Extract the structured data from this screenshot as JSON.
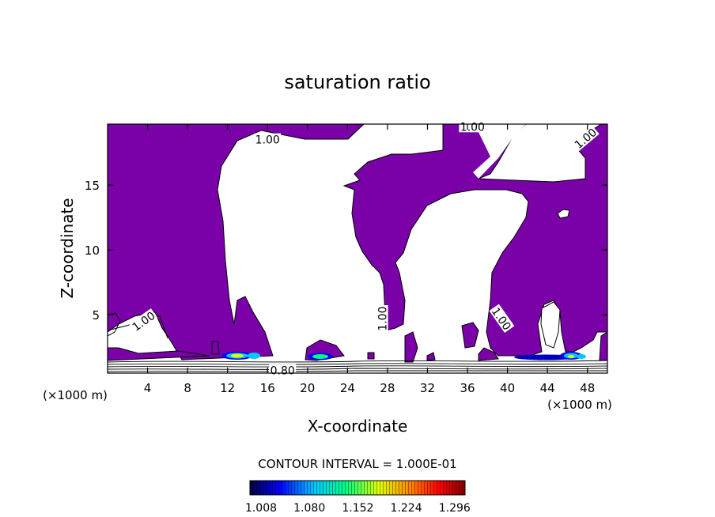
{
  "chart_data": {
    "type": "contour",
    "title": "saturation ratio",
    "xlabel": "X-coordinate",
    "ylabel": "Z-coordinate",
    "x_unit": "(×1000 m)",
    "x_unit_right": "(×1000 m)",
    "xlim": [
      0,
      50
    ],
    "ylim": [
      0.5,
      19.7
    ],
    "xticks": [
      4,
      8,
      12,
      16,
      20,
      24,
      28,
      32,
      36,
      40,
      44,
      48
    ],
    "yticks": [
      5,
      10,
      15
    ],
    "contour_labels": [
      {
        "text": "1.00",
        "x": 16.0,
        "y": 18.5
      },
      {
        "text": "1.00",
        "x": 36.5,
        "y": 19.5
      },
      {
        "text": "1.00",
        "x": 47.8,
        "y": 18.6
      },
      {
        "text": "1.00",
        "x": 3.6,
        "y": 4.5
      },
      {
        "text": "1.00",
        "x": 27.5,
        "y": 4.7
      },
      {
        "text": "1.00",
        "x": 39.4,
        "y": 4.7
      },
      {
        "text": "0.80",
        "x": 17.5,
        "y": 0.7
      }
    ],
    "contour_interval": "CONTOUR INTERVAL = 1.000E-01",
    "colorbar": {
      "tick_labels": [
        "1.008",
        "1.080",
        "1.152",
        "1.224",
        "1.296"
      ],
      "colors": [
        "#000040",
        "#0000ff",
        "#00c8ff",
        "#00ff80",
        "#e0ff00",
        "#ff8000",
        "#ff0000",
        "#800000"
      ]
    },
    "fill_color": "#7a00a8",
    "grid": false
  }
}
